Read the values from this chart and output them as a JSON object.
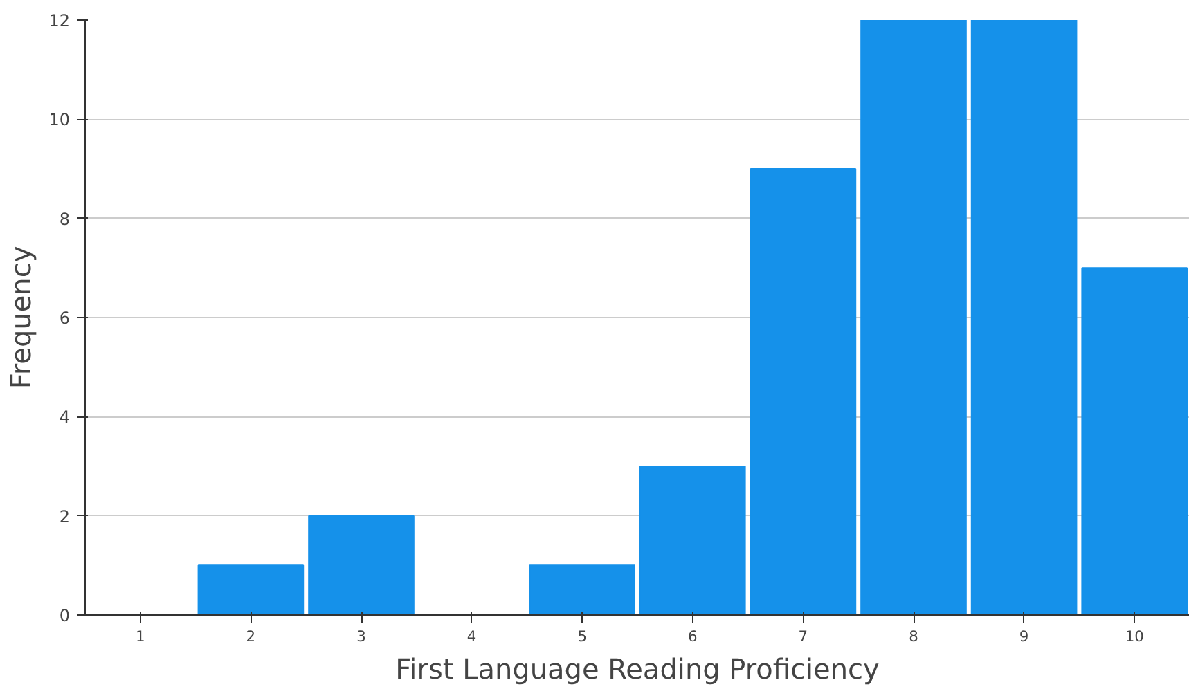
{
  "chart_data": {
    "type": "bar",
    "xlabel": "First Language Reading Proficiency",
    "ylabel": "Frequency",
    "categories": [
      "1",
      "2",
      "3",
      "4",
      "5",
      "6",
      "7",
      "8",
      "9",
      "10"
    ],
    "values": [
      0,
      1,
      2,
      0,
      1,
      3,
      9,
      12,
      12,
      7
    ],
    "color": "#1591ea",
    "ylim": [
      0,
      12
    ],
    "yticks": [
      0,
      2,
      4,
      6,
      8,
      10,
      12
    ],
    "grid": "y"
  }
}
